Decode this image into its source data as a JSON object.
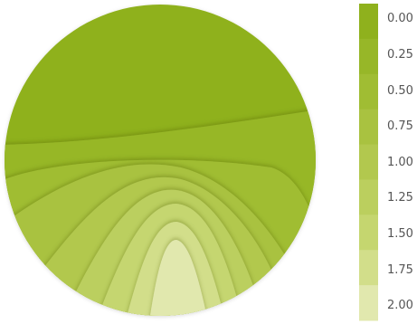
{
  "chart_data": {
    "type": "heatmap",
    "subtype": "filled-contour-circular",
    "title": "",
    "colorbar": {
      "position": "right",
      "ticks": [
        "0.00",
        "0.25",
        "0.50",
        "0.75",
        "1.00",
        "1.25",
        "1.50",
        "1.75",
        "2.00"
      ],
      "range": [
        0.0,
        2.0
      ],
      "colors": [
        "#8FB11D",
        "#97B728",
        "#A0BD33",
        "#A9C240",
        "#B2C84E",
        "#BBCF5E",
        "#C5D66F",
        "#D2DE8A",
        "#E1E8AE"
      ]
    },
    "levels": [
      {
        "value": 0.0,
        "color": "#8FB11D"
      },
      {
        "value": 0.25,
        "color": "#97B728"
      },
      {
        "value": 0.5,
        "color": "#A0BD33"
      },
      {
        "value": 0.75,
        "color": "#A9C240"
      },
      {
        "value": 1.0,
        "color": "#B2C84E"
      },
      {
        "value": 1.25,
        "color": "#BBCF5E"
      },
      {
        "value": 1.5,
        "color": "#C5D66F"
      },
      {
        "value": 1.75,
        "color": "#D2DE8A"
      },
      {
        "value": 2.0,
        "color": "#E1E8AE"
      }
    ],
    "grid": false,
    "legend": "colorbar right"
  }
}
